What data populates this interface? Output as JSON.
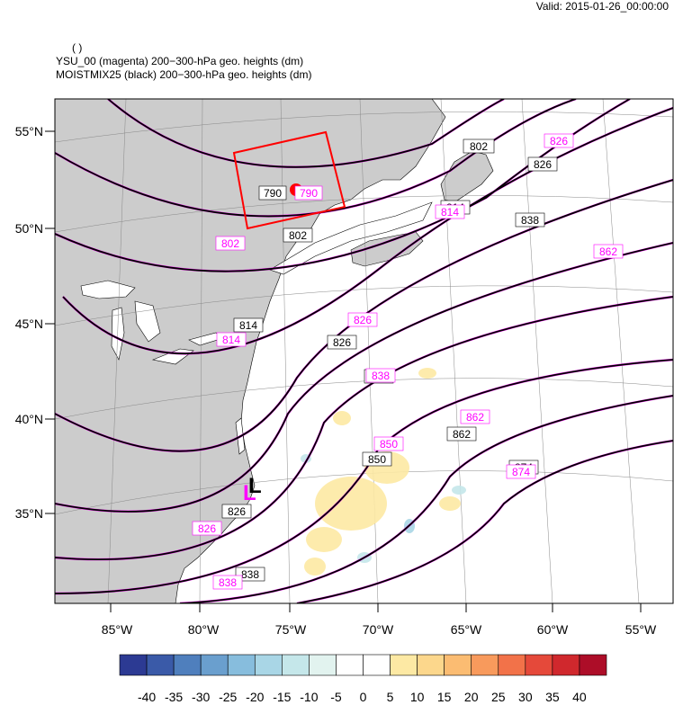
{
  "header": {
    "valid": "Valid: 2015-01-26_00:00:00",
    "paren": "( )",
    "line1": "YSU_00 (magenta) 200−300-hPa geo. heights   (dm)",
    "line2": "MOISTMIX25 (black) 200−300-hPa geo. heights   (dm)"
  },
  "axes": {
    "lat_labels": [
      "55°N",
      "50°N",
      "45°N",
      "40°N",
      "35°N"
    ],
    "lon_labels": [
      "85°W",
      "80°W",
      "75°W",
      "70°W",
      "65°W",
      "60°W",
      "55°W"
    ]
  },
  "colorbar": {
    "labels": [
      "-40",
      "-35",
      "-30",
      "-25",
      "-20",
      "-15",
      "-10",
      "-5",
      "0",
      "5",
      "10",
      "15",
      "20",
      "25",
      "30",
      "35",
      "40"
    ],
    "colors": [
      "#2c3a93",
      "#3a5aa8",
      "#4f7fbd",
      "#6a9fce",
      "#87bddd",
      "#a9d6e6",
      "#c5e7ea",
      "#e2f3ef",
      "#ffffff",
      "#ffffff",
      "#fde9a4",
      "#fcd78c",
      "#fbbc72",
      "#f89a5c",
      "#f27249",
      "#e5493a",
      "#d0282d",
      "#ad0d28"
    ]
  },
  "map_colors": {
    "land": "#cccccc",
    "ysu": "#ff00ff",
    "moist": "#000000",
    "box": "#ff0000",
    "dot": "#ff0000"
  },
  "labels_black": [
    "790",
    "802",
    "814",
    "826",
    "826",
    "826",
    "838",
    "838",
    "838",
    "850",
    "862",
    "874",
    "802",
    "814",
    "826"
  ],
  "labels_magenta": [
    "790",
    "802",
    "814",
    "826",
    "826",
    "838",
    "850",
    "862",
    "862",
    "874",
    "826",
    "814",
    "838"
  ],
  "low_marker": "L"
}
